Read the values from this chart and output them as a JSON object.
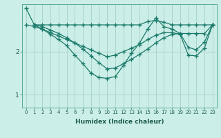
{
  "xlabel": "Humidex (Indice chaleur)",
  "ylabel": "",
  "bg_color": "#cceee8",
  "grid_color": "#aad4cc",
  "line_color": "#1a7a6a",
  "xlim": [
    -0.5,
    23.5
  ],
  "ylim": [
    0.7,
    3.1
  ],
  "yticks": [
    1,
    2
  ],
  "xticks": [
    0,
    1,
    2,
    3,
    4,
    5,
    6,
    7,
    8,
    9,
    10,
    11,
    12,
    13,
    14,
    15,
    16,
    17,
    18,
    19,
    20,
    21,
    22,
    23
  ],
  "line1_x": [
    0,
    1,
    2,
    3,
    4,
    5,
    6,
    7,
    8,
    9,
    10,
    11,
    12,
    13,
    14,
    15,
    16,
    17,
    18,
    19,
    20,
    21,
    22,
    23
  ],
  "line1_y": [
    3.0,
    2.62,
    2.62,
    2.62,
    2.62,
    2.62,
    2.62,
    2.62,
    2.62,
    2.62,
    2.62,
    2.62,
    2.62,
    2.62,
    2.62,
    2.7,
    2.72,
    2.68,
    2.62,
    2.62,
    2.62,
    2.62,
    2.62,
    2.62
  ],
  "line2_x": [
    1,
    2,
    3,
    4,
    5,
    6,
    7,
    8,
    9,
    10,
    11,
    12,
    13,
    14,
    15,
    16,
    17,
    18,
    19,
    20,
    21,
    22,
    23
  ],
  "line2_y": [
    2.62,
    2.58,
    2.5,
    2.42,
    2.32,
    2.2,
    2.06,
    1.9,
    1.74,
    1.6,
    1.62,
    1.72,
    1.82,
    1.94,
    2.06,
    2.2,
    2.32,
    2.4,
    2.42,
    2.42,
    2.42,
    2.42,
    2.62
  ],
  "line3_x": [
    1,
    2,
    3,
    4,
    5,
    6,
    7,
    8,
    9,
    10,
    11,
    12,
    13,
    14,
    15,
    16,
    17,
    18,
    19,
    20,
    21,
    22,
    23
  ],
  "line3_y": [
    2.62,
    2.52,
    2.4,
    2.28,
    2.14,
    1.92,
    1.72,
    1.5,
    1.4,
    1.38,
    1.42,
    1.68,
    1.96,
    2.2,
    2.52,
    2.78,
    2.58,
    2.52,
    2.42,
    2.1,
    2.04,
    2.22,
    2.62
  ],
  "line4_x": [
    0,
    1,
    2,
    3,
    4,
    5,
    6,
    7,
    8,
    9,
    10,
    11,
    12,
    13,
    14,
    15,
    16,
    17,
    18,
    19,
    20,
    21,
    22,
    23
  ],
  "line4_y": [
    2.62,
    2.58,
    2.52,
    2.44,
    2.36,
    2.28,
    2.2,
    2.12,
    2.04,
    1.96,
    1.88,
    1.92,
    2.0,
    2.08,
    2.16,
    2.28,
    2.38,
    2.44,
    2.44,
    2.4,
    1.92,
    1.9,
    2.08,
    2.62
  ]
}
